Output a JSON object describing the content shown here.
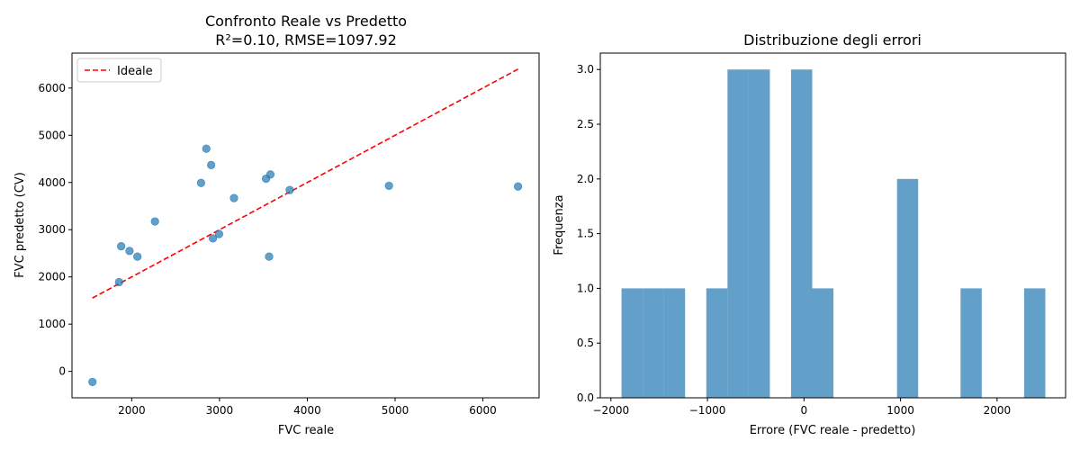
{
  "chart_data": [
    {
      "type": "scatter",
      "title": "Confronto Reale vs Predetto",
      "subtitle": "R²=0.10, RMSE=1097.92",
      "xlabel": "FVC reale",
      "ylabel": "FVC predetto (CV)",
      "xlim": [
        1320,
        6640
      ],
      "ylim": [
        -560,
        6740
      ],
      "xticks": [
        2000,
        3000,
        4000,
        5000,
        6000
      ],
      "yticks": [
        0,
        1000,
        2000,
        3000,
        4000,
        5000,
        6000
      ],
      "legend": {
        "entries": [
          "Ideale"
        ],
        "placement": "top-left"
      },
      "series": [
        {
          "kind": "points",
          "color": "#1f77b4",
          "points": [
            {
              "x": 1553,
              "y": -225
            },
            {
              "x": 1856,
              "y": 1890
            },
            {
              "x": 1880,
              "y": 2650
            },
            {
              "x": 1975,
              "y": 2550
            },
            {
              "x": 2065,
              "y": 2430
            },
            {
              "x": 2265,
              "y": 3175
            },
            {
              "x": 2790,
              "y": 3990
            },
            {
              "x": 2850,
              "y": 4715
            },
            {
              "x": 2905,
              "y": 4370
            },
            {
              "x": 2925,
              "y": 2815
            },
            {
              "x": 2995,
              "y": 2910
            },
            {
              "x": 3165,
              "y": 3670
            },
            {
              "x": 3530,
              "y": 4080
            },
            {
              "x": 3565,
              "y": 2430
            },
            {
              "x": 3580,
              "y": 4170
            },
            {
              "x": 3800,
              "y": 3840
            },
            {
              "x": 4930,
              "y": 3930
            },
            {
              "x": 6400,
              "y": 3915
            }
          ]
        },
        {
          "kind": "line",
          "name": "Ideale",
          "color": "#ff0000",
          "dashed": true,
          "points": [
            {
              "x": 1553,
              "y": 1553
            },
            {
              "x": 6400,
              "y": 6400
            }
          ]
        }
      ]
    },
    {
      "type": "bar",
      "title": "Distribuzione degli errori",
      "xlabel": "Errore (FVC reale - predetto)",
      "ylabel": "Frequenza",
      "xlim": [
        -2110,
        2710
      ],
      "ylim": [
        0,
        3.15
      ],
      "xticks": [
        -2000,
        -1000,
        0,
        1000,
        2000
      ],
      "yticks": [
        0.0,
        0.5,
        1.0,
        1.5,
        2.0,
        2.5,
        3.0
      ],
      "color": "#1f77b4",
      "bin_start": -1890,
      "bin_width": 219.5,
      "values": [
        1,
        1,
        1,
        0,
        1,
        3,
        3,
        0,
        3,
        1,
        0,
        0,
        0,
        2,
        0,
        0,
        1,
        0,
        0,
        1
      ]
    }
  ]
}
